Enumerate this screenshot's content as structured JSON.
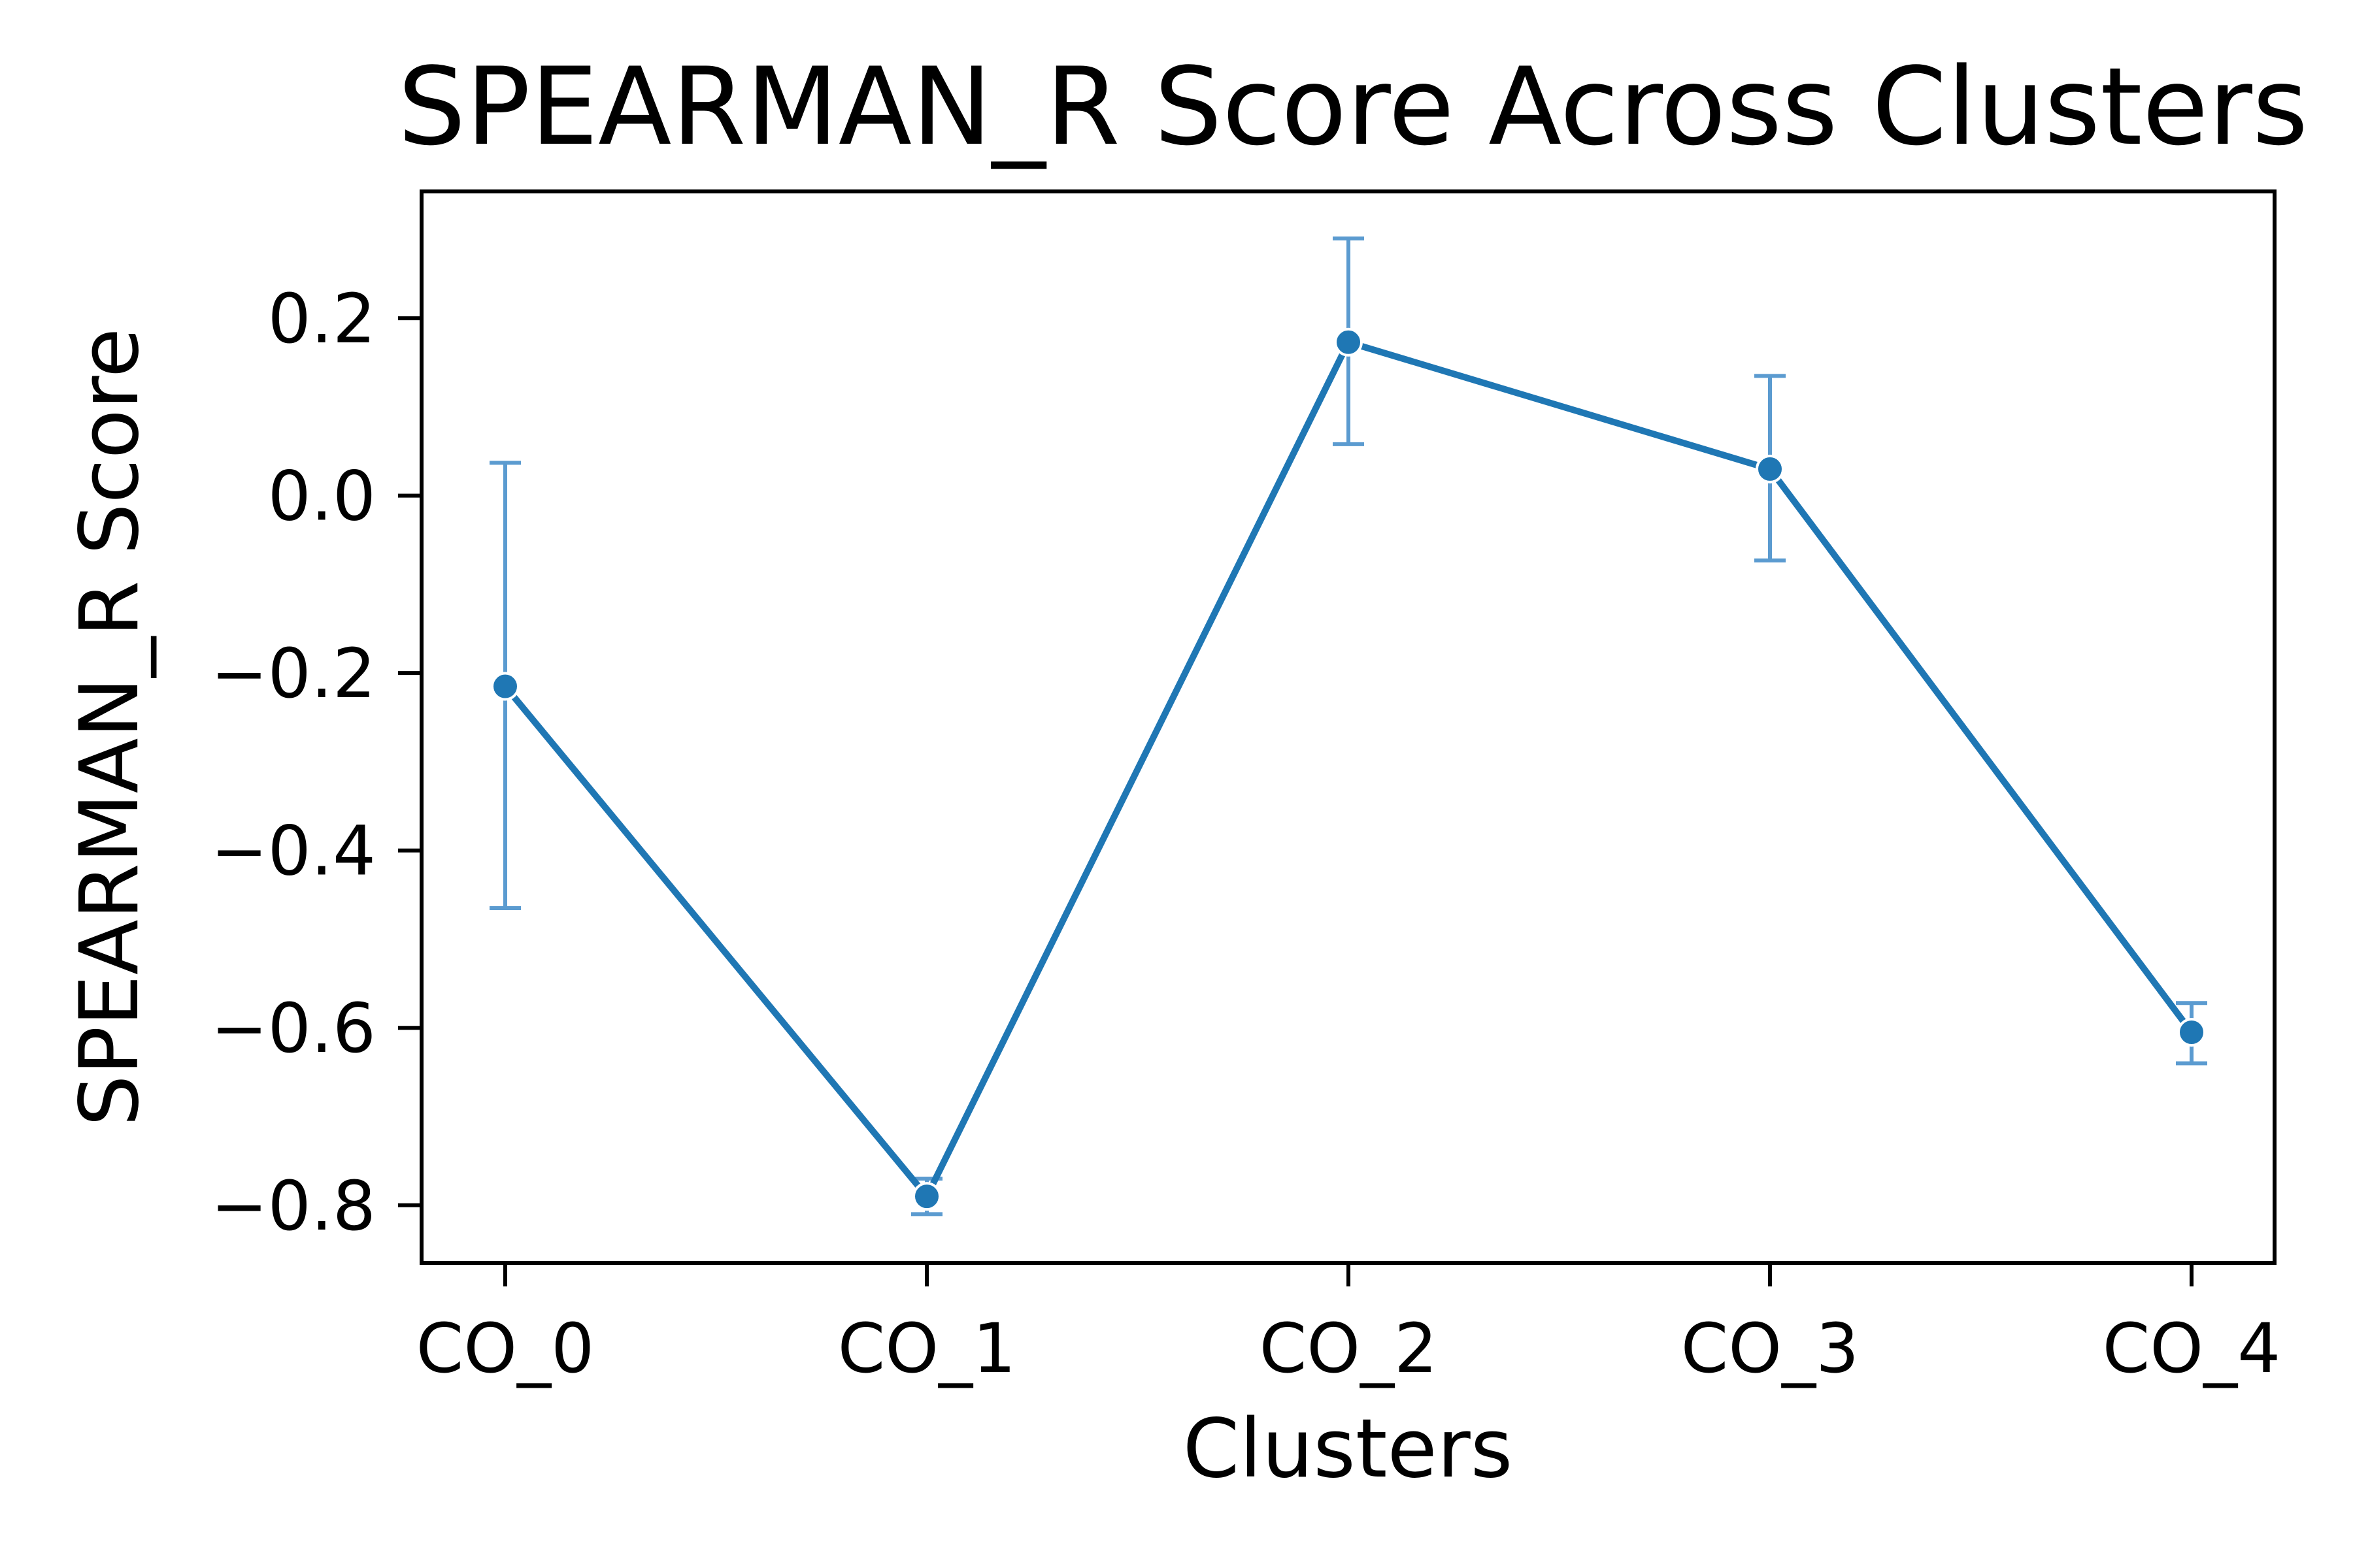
{
  "chart_data": {
    "type": "line",
    "title": "SPEARMAN_R Score Across Clusters",
    "xlabel": "Clusters",
    "ylabel": "SPEARMAN_R Score",
    "categories": [
      "CO_0",
      "CO_1",
      "CO_2",
      "CO_3",
      "CO_4"
    ],
    "series": [
      {
        "values": [
          -0.215,
          -0.79,
          0.173,
          0.03,
          -0.605
        ],
        "error_low": [
          -0.465,
          -0.81,
          0.058,
          -0.073,
          -0.64
        ],
        "error_high": [
          0.037,
          -0.77,
          0.29,
          0.135,
          -0.572
        ],
        "color": "#1f77b4",
        "error_color": "#5b9bd0"
      }
    ],
    "ylim": [
      -0.865,
      0.343
    ],
    "yticks": [
      0.2,
      0.0,
      -0.2,
      -0.4,
      -0.6,
      -0.8
    ],
    "ytick_labels": [
      "0.2",
      "0.0",
      "−0.2",
      "−0.4",
      "−0.6",
      "−0.8"
    ],
    "grid": false,
    "legend": "none"
  }
}
